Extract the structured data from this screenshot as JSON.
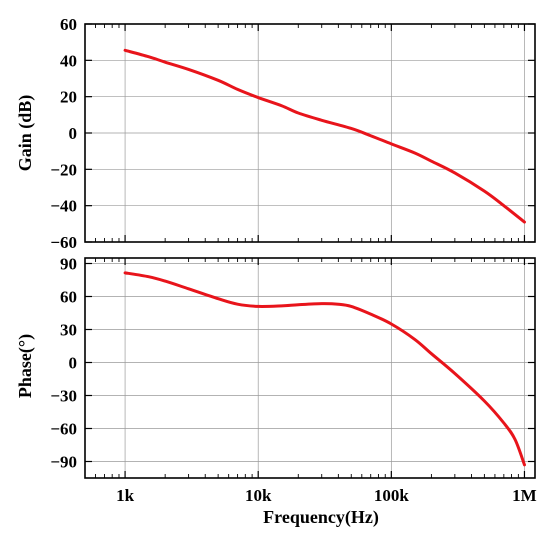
{
  "chart_data": [
    {
      "type": "line",
      "panel": "gain",
      "ylabel": "Gain (dB)",
      "xlabel": "",
      "xscale": "log",
      "xlim": [
        500,
        1200000
      ],
      "ylim": [
        -60,
        60
      ],
      "x_ticks": [
        1000,
        10000,
        100000,
        1000000
      ],
      "y_ticks": [
        -60,
        -40,
        -20,
        0,
        20,
        40,
        60
      ],
      "y_tick_labels": [
        "−60",
        "−40",
        "−20",
        "0",
        "20",
        "40",
        "60"
      ],
      "grid": true,
      "series": [
        {
          "color": "#e8141b",
          "x": [
            1000,
            1500,
            2000,
            3000,
            5000,
            7000,
            10000,
            15000,
            20000,
            30000,
            50000,
            70000,
            100000,
            150000,
            200000,
            300000,
            500000,
            700000,
            1000000
          ],
          "y": [
            45.5,
            42,
            39,
            35,
            29,
            24,
            19.5,
            15,
            11,
            7,
            2.5,
            -1.5,
            -6,
            -11,
            -15.5,
            -22,
            -32,
            -40,
            -49
          ]
        }
      ]
    },
    {
      "type": "line",
      "panel": "phase",
      "ylabel": "Phase(°)",
      "xlabel": "Frequency(Hz)",
      "xscale": "log",
      "xlim": [
        500,
        1200000
      ],
      "ylim": [
        -105,
        95
      ],
      "x_ticks": [
        1000,
        10000,
        100000,
        1000000
      ],
      "x_tick_labels": [
        "1k",
        "10k",
        "100k",
        "1M"
      ],
      "y_ticks": [
        -90,
        -60,
        -30,
        0,
        30,
        60,
        90
      ],
      "y_tick_labels": [
        "−90",
        "−60",
        "−30",
        "0",
        "30",
        "60",
        "90"
      ],
      "grid": true,
      "series": [
        {
          "color": "#e8141b",
          "x": [
            1000,
            1500,
            2000,
            3000,
            5000,
            7000,
            10000,
            15000,
            20000,
            30000,
            40000,
            50000,
            70000,
            100000,
            150000,
            200000,
            300000,
            500000,
            700000,
            850000,
            1000000
          ],
          "y": [
            81.5,
            78,
            74,
            67,
            58,
            53,
            51,
            51.5,
            52.5,
            53.5,
            53,
            51,
            44,
            35,
            21,
            8,
            -10,
            -35,
            -55,
            -70,
            -93
          ]
        }
      ]
    }
  ]
}
